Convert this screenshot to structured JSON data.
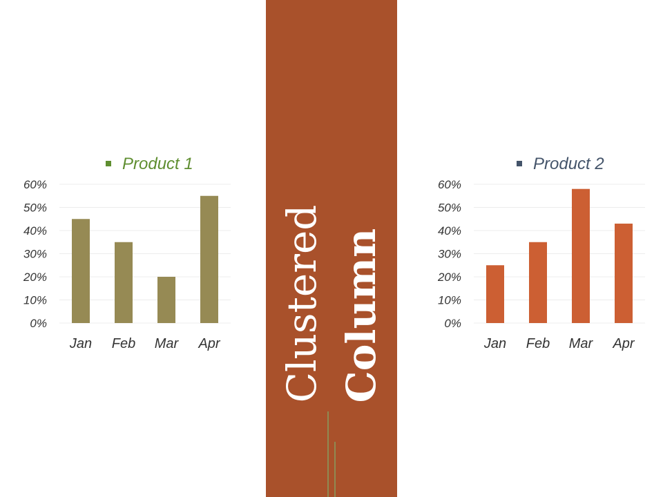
{
  "band": {
    "title_line1": "Clustered",
    "title_line2": "Column",
    "color": "#a9512b"
  },
  "chart_data": [
    {
      "type": "bar",
      "categories": [
        "Jan",
        "Feb",
        "Mar",
        "Apr"
      ],
      "series": [
        {
          "name": "Product 1",
          "values": [
            45,
            35,
            20,
            55
          ]
        }
      ],
      "yticks": [
        "0%",
        "10%",
        "20%",
        "30%",
        "40%",
        "50%",
        "60%"
      ],
      "ylim": [
        0,
        60
      ],
      "grid": true,
      "legend": "top",
      "bar_color": "#968a54",
      "legend_color": "#5f8e30"
    },
    {
      "type": "bar",
      "categories": [
        "Jan",
        "Feb",
        "Mar",
        "Apr"
      ],
      "series": [
        {
          "name": "Product 2",
          "values": [
            25,
            35,
            58,
            43
          ]
        }
      ],
      "yticks": [
        "0%",
        "10%",
        "20%",
        "30%",
        "40%",
        "50%",
        "60%"
      ],
      "ylim": [
        0,
        60
      ],
      "grid": true,
      "legend": "top",
      "bar_color": "#cc5f33",
      "legend_color": "#44546a"
    }
  ]
}
